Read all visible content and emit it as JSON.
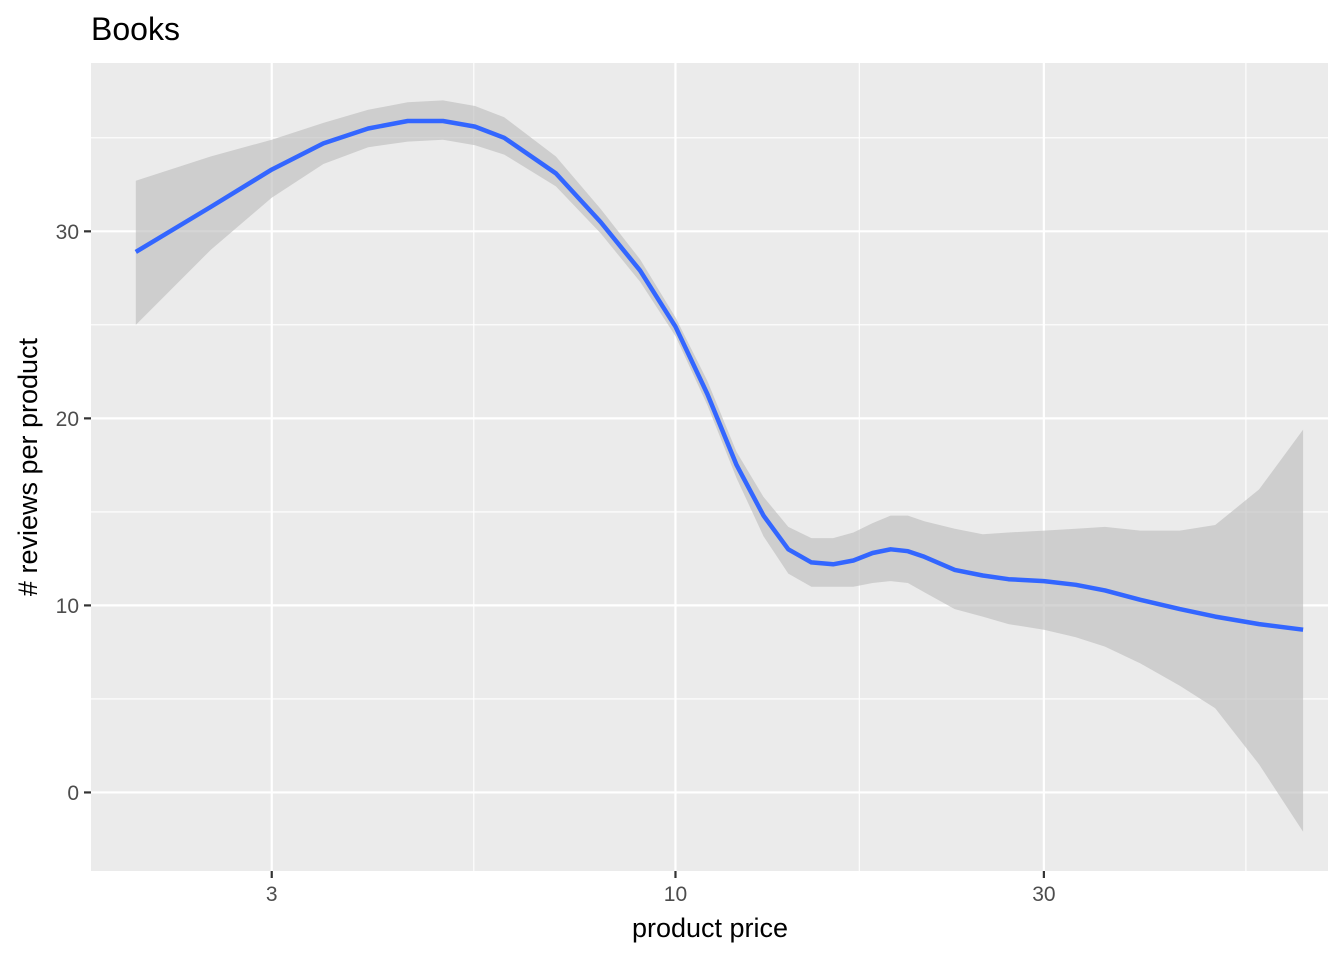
{
  "chart_data": {
    "type": "line",
    "title": "Books",
    "xlabel": "product price",
    "ylabel": "# reviews per product",
    "x_scale": "log10",
    "xlim": [
      1.75,
      70
    ],
    "ylim": [
      -4.2,
      39
    ],
    "x_ticks": [
      3,
      10,
      30
    ],
    "x_tick_labels": [
      "3",
      "10",
      "30"
    ],
    "x_minor_ticks": [
      5.48,
      17.3,
      54.8
    ],
    "y_ticks": [
      0,
      10,
      20,
      30
    ],
    "y_tick_labels": [
      "0",
      "10",
      "20",
      "30"
    ],
    "y_minor_ticks": [
      5,
      15,
      25,
      35
    ],
    "grid": true,
    "colors": {
      "panel": "#EBEBEB",
      "grid": "#FFFFFF",
      "line": "#3366FF",
      "band": "#BEBEBE"
    },
    "series": [
      {
        "type": "smooth",
        "x": [
          2.0,
          2.5,
          3.0,
          3.5,
          4.0,
          4.5,
          5.0,
          5.5,
          6.0,
          7.0,
          8.0,
          9.0,
          10.0,
          11.0,
          12.0,
          13.0,
          14.0,
          15.0,
          16.0,
          17.0,
          18.0,
          19.0,
          20.0,
          21.0,
          23.0,
          25.0,
          27.0,
          30.0,
          33.0,
          36.0,
          40.0,
          45.0,
          50.0,
          57.0,
          65.0
        ],
        "y": [
          28.9,
          31.3,
          33.3,
          34.7,
          35.5,
          35.9,
          35.9,
          35.6,
          35.0,
          33.1,
          30.5,
          27.9,
          24.9,
          21.3,
          17.5,
          14.8,
          13.0,
          12.3,
          12.2,
          12.4,
          12.8,
          13.0,
          12.9,
          12.6,
          11.9,
          11.6,
          11.4,
          11.3,
          11.1,
          10.8,
          10.3,
          9.8,
          9.4,
          9.0,
          8.7
        ],
        "ymin": [
          25.0,
          29.0,
          31.8,
          33.6,
          34.5,
          34.8,
          34.9,
          34.6,
          34.1,
          32.4,
          29.9,
          27.3,
          24.4,
          20.7,
          16.8,
          13.7,
          11.7,
          11.0,
          11.0,
          11.0,
          11.2,
          11.3,
          11.2,
          10.7,
          9.8,
          9.4,
          9.0,
          8.7,
          8.3,
          7.8,
          6.9,
          5.7,
          4.5,
          1.5,
          -2.1
        ],
        "ymax": [
          32.7,
          34.0,
          34.9,
          35.8,
          36.5,
          36.9,
          37.0,
          36.7,
          36.1,
          34.0,
          31.2,
          28.5,
          25.4,
          22.0,
          18.2,
          15.8,
          14.2,
          13.6,
          13.6,
          13.9,
          14.4,
          14.8,
          14.8,
          14.5,
          14.1,
          13.8,
          13.9,
          14.0,
          14.1,
          14.2,
          14.0,
          14.0,
          14.3,
          16.2,
          19.4
        ]
      }
    ]
  }
}
